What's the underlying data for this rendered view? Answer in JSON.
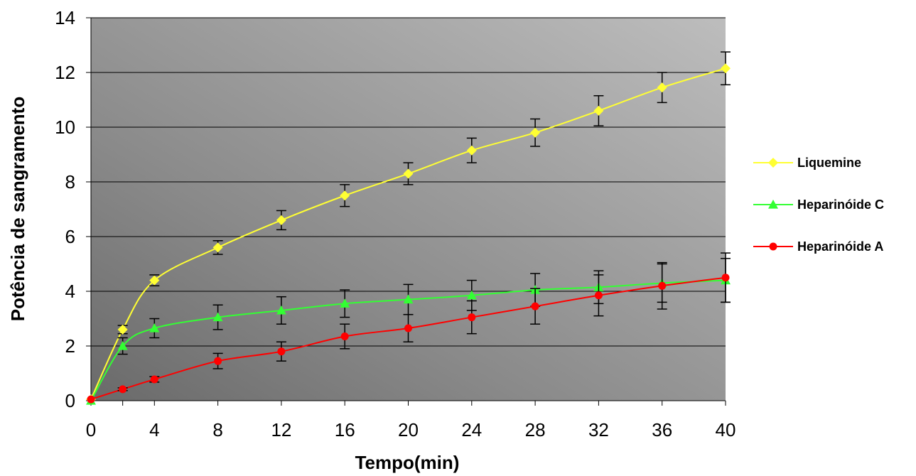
{
  "chart_data": {
    "type": "line",
    "xlabel": "Tempo(min)",
    "ylabel": "Potência de sangramento",
    "x": [
      0,
      2,
      4,
      8,
      12,
      16,
      20,
      24,
      28,
      32,
      36,
      40
    ],
    "xtick_labels": [
      "0",
      "4",
      "8",
      "12",
      "16",
      "20",
      "24",
      "28",
      "32",
      "36",
      "40"
    ],
    "xtick_positions": [
      0,
      4,
      8,
      12,
      16,
      20,
      24,
      28,
      32,
      36,
      40
    ],
    "ylim": [
      0,
      14
    ],
    "yticks": [
      0,
      2,
      4,
      6,
      8,
      10,
      12,
      14
    ],
    "grid": true,
    "legend": "right",
    "series": [
      {
        "name": "Liquemine",
        "color": "#ffff33",
        "marker": "diamond",
        "values": [
          0.05,
          2.6,
          4.4,
          5.6,
          6.6,
          7.5,
          8.3,
          9.15,
          9.8,
          10.6,
          11.45,
          12.15
        ],
        "errors": [
          0,
          0.15,
          0.2,
          0.25,
          0.35,
          0.4,
          0.4,
          0.45,
          0.5,
          0.55,
          0.55,
          0.6
        ]
      },
      {
        "name": "Heparinóide C",
        "color": "#33ff33",
        "marker": "triangle",
        "values": [
          0.0,
          2.0,
          2.65,
          3.05,
          3.3,
          3.55,
          3.7,
          3.85,
          4.05,
          4.15,
          4.3,
          4.4
        ],
        "errors": [
          0,
          0.3,
          0.35,
          0.45,
          0.5,
          0.5,
          0.55,
          0.55,
          0.6,
          0.6,
          0.7,
          0.8
        ]
      },
      {
        "name": "Heparinóide A",
        "color": "#ff0000",
        "marker": "circle",
        "values": [
          0.05,
          0.42,
          0.78,
          1.45,
          1.8,
          2.35,
          2.65,
          3.05,
          3.45,
          3.85,
          4.2,
          4.5
        ],
        "errors": [
          0,
          0.05,
          0.1,
          0.28,
          0.35,
          0.45,
          0.5,
          0.6,
          0.65,
          0.75,
          0.85,
          0.9
        ]
      }
    ]
  }
}
